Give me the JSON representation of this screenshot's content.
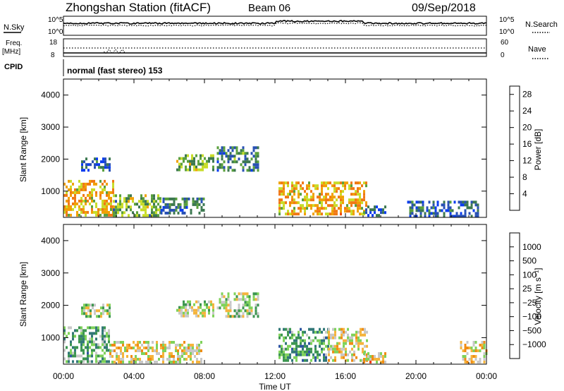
{
  "header": {
    "station": "Zhongshan Station (fitACF)",
    "beam": "Beam 06",
    "date": "09/Sep/2018"
  },
  "status_panels": {
    "nsky_label": "N.Sky",
    "nsky_ticks": [
      "10^5",
      "10^0"
    ],
    "nsearch_label": "N.Search",
    "nsearch_ticks": [
      "10^5",
      "10^0"
    ],
    "freq_label": "Freq.",
    "freq_unit": "[MHz]",
    "freq_ticks": [
      "18",
      "8"
    ],
    "nave_label": "Nave",
    "nave_ticks": [
      "60",
      "0"
    ],
    "cpid_label": "CPID",
    "cpid_text": "normal (fast stereo) 153"
  },
  "colors": {
    "power": [
      "#0a3cf0",
      "#2850b4",
      "#3c7850",
      "#5aa03c",
      "#c8dc28",
      "#f0a000",
      "#f07814",
      "#f04b0a",
      "#e60000"
    ],
    "velocity": [
      "#e10000",
      "#f03c00",
      "#f08c14",
      "#f5b43c",
      "#c8c8c8",
      "#7fd25a",
      "#3c9650",
      "#327878",
      "#2d55a0",
      "#1e3cd2"
    ]
  },
  "chart_data": [
    {
      "type": "heatmap",
      "name": "power",
      "xlabel": "",
      "ylabel": "Slant Range [km]",
      "xlim": [
        0,
        24
      ],
      "ylim": [
        180,
        4500
      ],
      "y_ticks": [
        "1000",
        "2000",
        "3000",
        "4000"
      ],
      "colorbar": {
        "label": "Power [dB]",
        "ticks": [
          "4",
          "8",
          "12",
          "16",
          "20",
          "24",
          "28"
        ],
        "range": [
          0,
          30
        ]
      },
      "regions": [
        {
          "x": [
            0.0,
            2.8
          ],
          "y": [
            250,
            1350
          ],
          "v": 18
        },
        {
          "x": [
            2.8,
            5.5
          ],
          "y": [
            250,
            900
          ],
          "v": 12
        },
        {
          "x": [
            5.5,
            8.0
          ],
          "y": [
            280,
            800
          ],
          "v": 8
        },
        {
          "x": [
            1.0,
            2.6
          ],
          "y": [
            1650,
            2050
          ],
          "v": 6
        },
        {
          "x": [
            6.4,
            8.5
          ],
          "y": [
            1700,
            2150
          ],
          "v": 12
        },
        {
          "x": [
            8.7,
            11.0
          ],
          "y": [
            1650,
            2400
          ],
          "v": 8
        },
        {
          "x": [
            12.2,
            17.2
          ],
          "y": [
            300,
            1300
          ],
          "v": 18
        },
        {
          "x": [
            17.0,
            18.3
          ],
          "y": [
            280,
            550
          ],
          "v": 5
        },
        {
          "x": [
            19.5,
            23.5
          ],
          "y": [
            250,
            700
          ],
          "v": 5
        }
      ]
    },
    {
      "type": "heatmap",
      "name": "velocity",
      "xlabel": "Time UT",
      "ylabel": "Slant Range [km]",
      "xlim": [
        0,
        24
      ],
      "ylim": [
        180,
        4500
      ],
      "x_ticks": [
        "00:00",
        "04:00",
        "08:00",
        "12:00",
        "16:00",
        "20:00",
        "00:00"
      ],
      "y_ticks": [
        "1000",
        "2000",
        "3000",
        "4000"
      ],
      "colorbar": {
        "label": "Velocity [m s⁻¹]",
        "ticks": [
          "1000",
          "500",
          "100",
          "25",
          "−25",
          "−100",
          "−500",
          "−1000"
        ],
        "range": [
          -1200,
          1200
        ]
      },
      "regions": [
        {
          "x": [
            0.0,
            2.6
          ],
          "y": [
            250,
            1350
          ],
          "v": 300
        },
        {
          "x": [
            2.6,
            7.8
          ],
          "y": [
            250,
            900
          ],
          "v": -200
        },
        {
          "x": [
            1.0,
            2.6
          ],
          "y": [
            1650,
            2050
          ],
          "v": 0
        },
        {
          "x": [
            6.4,
            8.5
          ],
          "y": [
            1700,
            2150
          ],
          "v": 0
        },
        {
          "x": [
            8.7,
            11.0
          ],
          "y": [
            1650,
            2400
          ],
          "v": 0
        },
        {
          "x": [
            12.2,
            15.0
          ],
          "y": [
            300,
            1300
          ],
          "v": 400
        },
        {
          "x": [
            15.0,
            17.2
          ],
          "y": [
            300,
            1300
          ],
          "v": -200
        },
        {
          "x": [
            17.0,
            18.3
          ],
          "y": [
            280,
            550
          ],
          "v": -300
        },
        {
          "x": [
            22.5,
            24.0
          ],
          "y": [
            250,
            900
          ],
          "v": -250
        }
      ]
    }
  ]
}
